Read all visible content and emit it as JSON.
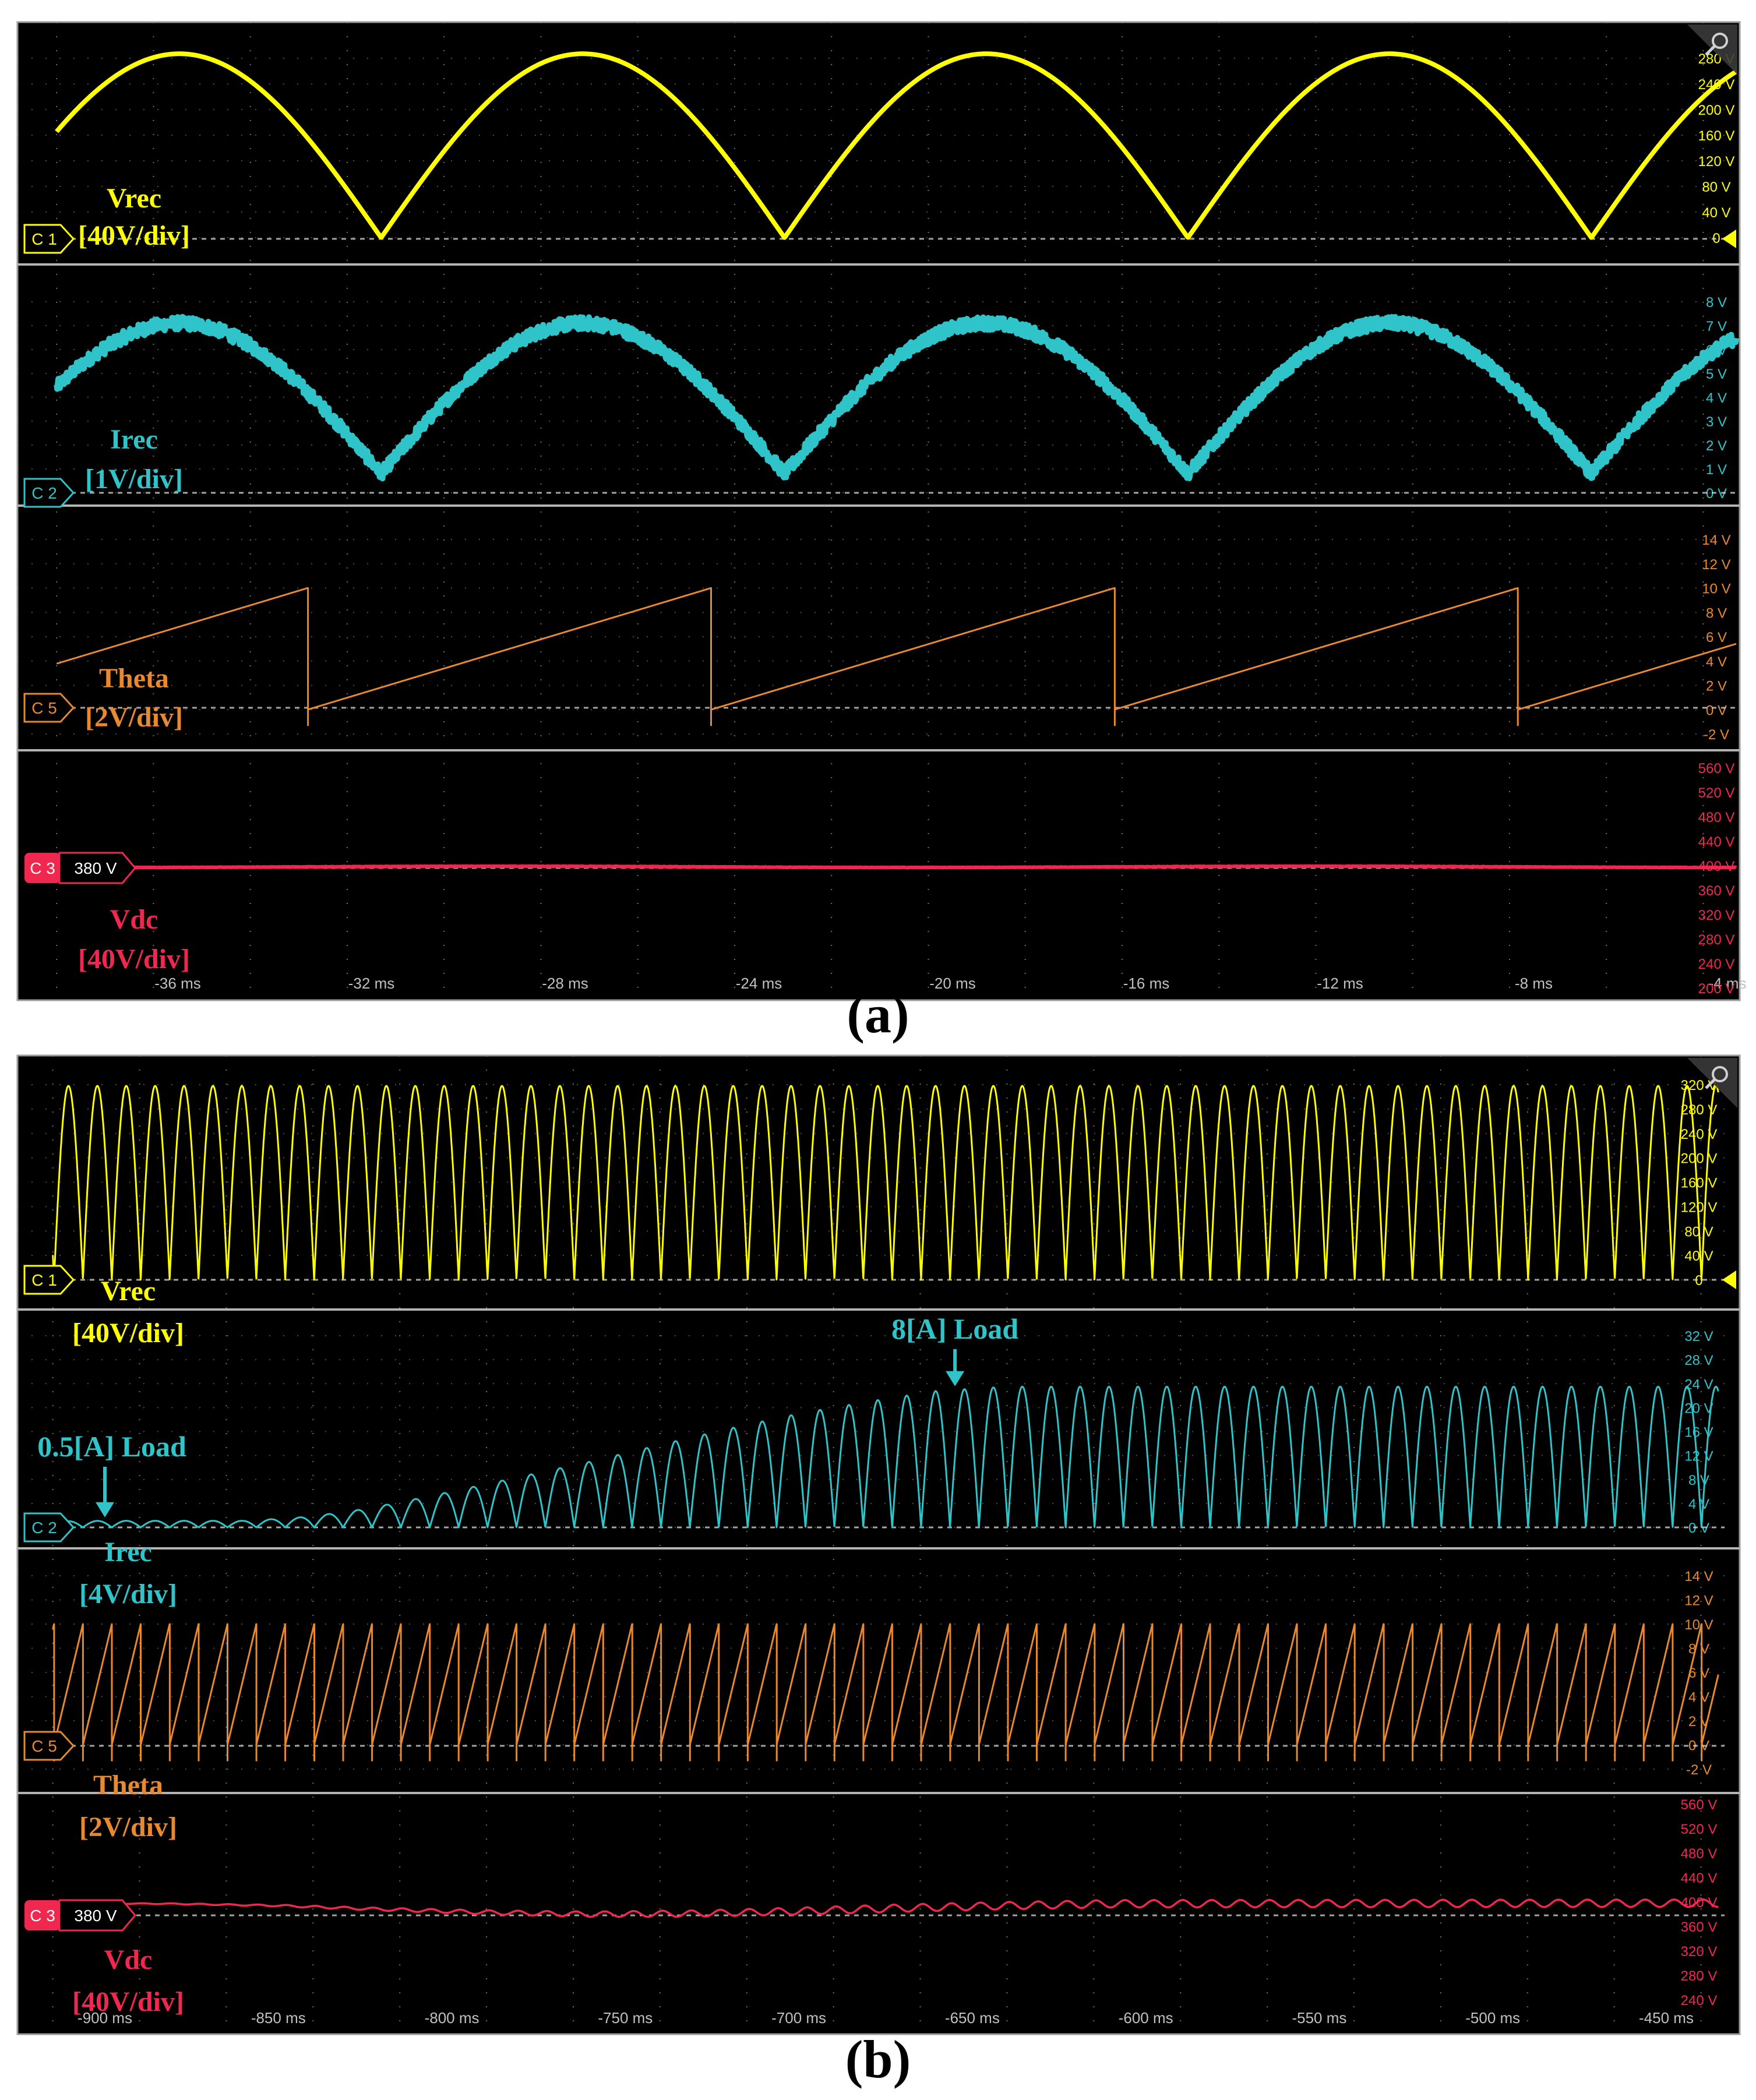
{
  "colors": {
    "vrec": "#ffff00",
    "irec": "#2ec4c9",
    "theta": "#e8892f",
    "vdc": "#f02850",
    "grid": "#8a8a8a",
    "screen": "#000000",
    "separator": "#b4b4b4"
  },
  "icons": [
    "magnify-icon",
    "ground-level-marker-icon"
  ],
  "panels": [
    {
      "id": "a",
      "caption": "(a)",
      "time_ticks": [
        "-36 ms",
        "-32 ms",
        "-28 ms",
        "-24 ms",
        "-20 ms",
        "-16 ms",
        "-12 ms",
        "-8 ms",
        "-4 ms"
      ],
      "channels": [
        {
          "badge": "C 1",
          "name": "Vrec",
          "scale": "[40V/div]",
          "scale_labels": [
            "280 V",
            "240 V",
            "200 V",
            "160 V",
            "120 V",
            "80 V",
            "40 V",
            "0"
          ]
        },
        {
          "badge": "C 2",
          "name": "Irec",
          "scale": "[1V/div]",
          "scale_labels": [
            "8 V",
            "7 V",
            "6 V",
            "5 V",
            "4 V",
            "3 V",
            "2 V",
            "1 V",
            "0 V"
          ]
        },
        {
          "badge": "C 5",
          "name": "Theta",
          "scale": "[2V/div]",
          "scale_labels": [
            "14 V",
            "12 V",
            "10 V",
            "8 V",
            "6 V",
            "4 V",
            "2 V",
            "0 V",
            "-2 V"
          ]
        },
        {
          "badge": "C 3",
          "offset": "380 V",
          "name": "Vdc",
          "scale": "[40V/div]",
          "scale_labels": [
            "560 V",
            "520 V",
            "480 V",
            "440 V",
            "400 V",
            "360 V",
            "320 V",
            "280 V",
            "240 V",
            "200 V"
          ]
        }
      ]
    },
    {
      "id": "b",
      "caption": "(b)",
      "time_ticks": [
        "-900 ms",
        "-850 ms",
        "-800 ms",
        "-750 ms",
        "-700 ms",
        "-650 ms",
        "-600 ms",
        "-550 ms",
        "-500 ms",
        "-450 ms"
      ],
      "channels": [
        {
          "badge": "C 1",
          "name": "Vrec",
          "scale": "[40V/div]",
          "scale_labels": [
            "320 V",
            "280 V",
            "240 V",
            "200 V",
            "160 V",
            "120 V",
            "80 V",
            "40 V",
            "0"
          ]
        },
        {
          "badge": "C 2",
          "name": "Irec",
          "scale": "[4V/div]",
          "scale_labels": [
            "32 V",
            "28 V",
            "24 V",
            "20 V",
            "16 V",
            "12 V",
            "8 V",
            "4 V",
            "0 V"
          ]
        },
        {
          "badge": "C 5",
          "name": "Theta",
          "scale": "[2V/div]",
          "scale_labels": [
            "14 V",
            "12 V",
            "10 V",
            "8 V",
            "6 V",
            "4 V",
            "2 V",
            "0 V",
            "-2 V"
          ]
        },
        {
          "badge": "C 3",
          "offset": "380 V",
          "name": "Vdc",
          "scale": "[40V/div]",
          "scale_labels": [
            "560 V",
            "520 V",
            "480 V",
            "440 V",
            "400 V",
            "360 V",
            "320 V",
            "280 V",
            "240 V"
          ]
        }
      ],
      "annotations": [
        {
          "text": "0.5[A] Load",
          "time_ms": -900
        },
        {
          "text": "8[A] Load",
          "time_ms": -655
        }
      ]
    }
  ],
  "chart_data": [
    {
      "type": "line",
      "panel": "(a)",
      "x_ticks_ms": [
        -36,
        -32,
        -28,
        -24,
        -20,
        -16,
        -12,
        -8,
        -4
      ],
      "xlim_ms": [
        -38.5,
        1.5
      ],
      "series": [
        {
          "name": "Vrec",
          "unit": "V",
          "ylim": [
            0,
            300
          ],
          "waveform": "full-wave rectified sine",
          "period_ms": 8.33,
          "peak": 287,
          "zeros_ms": [
            -31.8,
            -23.5,
            -15.2,
            -6.9
          ]
        },
        {
          "name": "Irec",
          "unit": "V",
          "ylim": [
            0,
            8
          ],
          "waveform": "noisy full-wave rectified sine",
          "period_ms": 8.33,
          "peak": 7.1,
          "trough": 0.8,
          "zeros_ms": [
            -31.8,
            -23.5,
            -15.2,
            -6.9
          ]
        },
        {
          "name": "Theta",
          "unit": "V",
          "ylim": [
            -2,
            14
          ],
          "waveform": "sawtooth ramp",
          "period_ms": 8.33,
          "min": 0,
          "max": 10,
          "resets_ms": [
            -31.8,
            -23.5,
            -15.2,
            -6.9
          ]
        },
        {
          "name": "Vdc",
          "unit": "V",
          "ylim": [
            200,
            560
          ],
          "waveform": "constant with small ripple",
          "mean": 398,
          "ripple_pp": 2
        }
      ]
    },
    {
      "type": "line",
      "panel": "(b)",
      "x_ticks_ms": [
        -900,
        -850,
        -800,
        -750,
        -700,
        -650,
        -600,
        -550,
        -500,
        -450
      ],
      "xlim_ms": [
        -915,
        -435
      ],
      "series": [
        {
          "name": "Vrec",
          "unit": "V",
          "ylim": [
            0,
            330
          ],
          "waveform": "full-wave rectified sine",
          "period_ms": 8.33,
          "peak": 318
        },
        {
          "name": "Irec",
          "unit": "V",
          "ylim": [
            0,
            32
          ],
          "waveform": "rectified sine with rising envelope",
          "period_ms": 8.33,
          "envelope_t_ms": [
            -915,
            -900,
            -860,
            -845,
            -830,
            -815,
            -800,
            -780,
            -760,
            -740,
            -720,
            -700,
            -680,
            -660,
            -640,
            -435
          ],
          "envelope_peak": [
            1.0,
            1.1,
            1.1,
            1.6,
            2.6,
            4.2,
            6.0,
            8.5,
            11.0,
            13.8,
            16.5,
            19.0,
            21.0,
            22.8,
            23.5,
            23.5
          ]
        },
        {
          "name": "Theta",
          "unit": "V",
          "ylim": [
            -2,
            14
          ],
          "waveform": "sawtooth ramp",
          "period_ms": 8.33,
          "min": 0,
          "max": 10
        },
        {
          "name": "Vdc",
          "unit": "V",
          "ylim": [
            240,
            560
          ],
          "mean_t_ms": [
            -915,
            -880,
            -850,
            -820,
            -790,
            -760,
            -730,
            -700,
            -670,
            -640,
            -610,
            -435
          ],
          "mean": [
            398,
            397,
            394,
            388,
            383,
            380,
            381,
            385,
            390,
            394,
            397,
            398
          ],
          "ripple_t_ms": [
            -915,
            -860,
            -800,
            -740,
            -680,
            -640,
            -435
          ],
          "ripple_amp": [
            0.2,
            1.0,
            3.0,
            5.0,
            6.0,
            6.0,
            6.0
          ]
        }
      ]
    }
  ]
}
